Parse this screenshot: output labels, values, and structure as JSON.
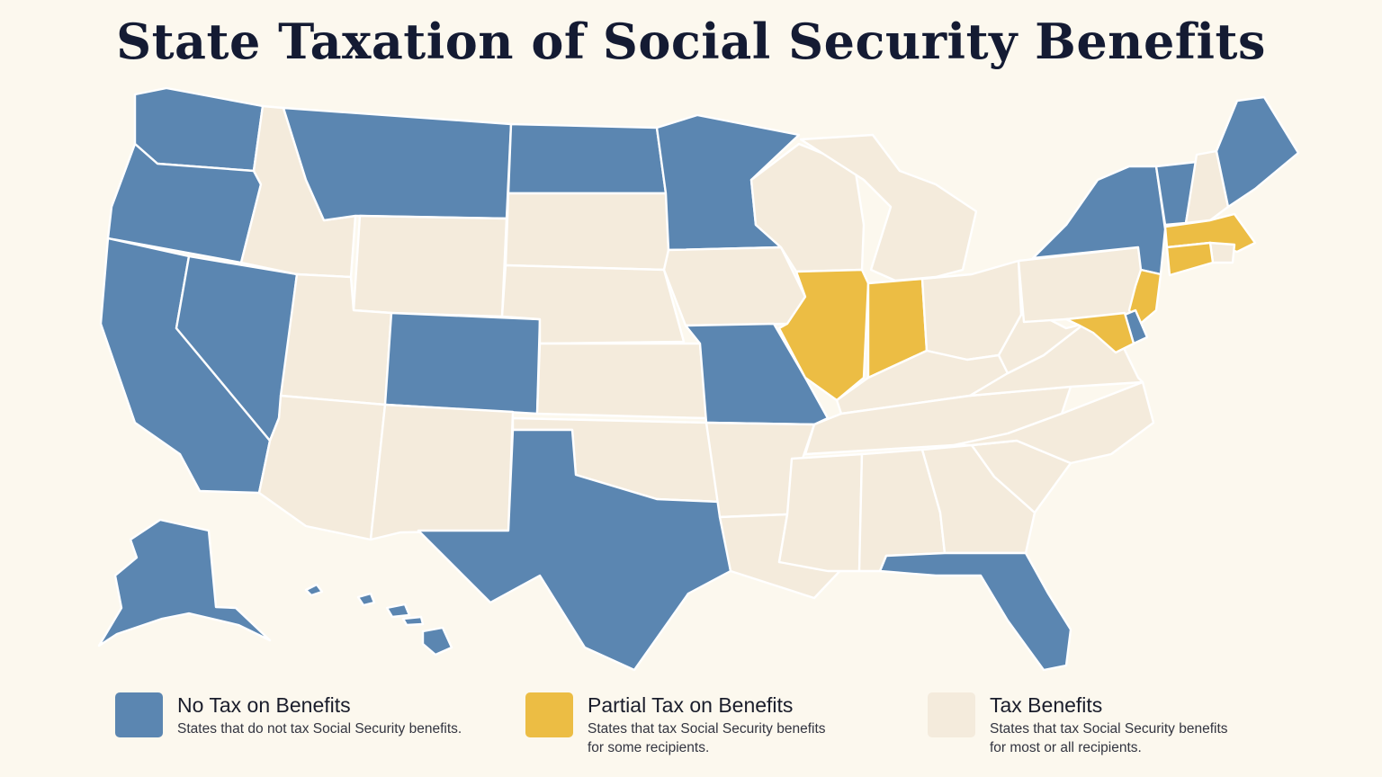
{
  "title": "State Taxation of Social Security Benefits",
  "colors": {
    "none": "#5b86b1",
    "partial": "#ecbd44",
    "full": "#f4ebdc",
    "background": "#fcf8ee",
    "border": "#ffffff"
  },
  "legend": [
    {
      "key": "none",
      "label": "No Tax on Benefits",
      "description": "States that do not tax Social Security benefits."
    },
    {
      "key": "partial",
      "label": "Partial Tax on Benefits",
      "description": "States that tax Social Security benefits for some recipients."
    },
    {
      "key": "full",
      "label": "Tax Benefits",
      "description": "States that tax Social Security benefits for most or all recipients."
    }
  ],
  "states": {
    "WA": "none",
    "OR": "none",
    "CA": "none",
    "NV": "none",
    "ID": "full",
    "MT": "none",
    "WY": "full",
    "UT": "full",
    "AZ": "full",
    "CO": "none",
    "NM": "full",
    "ND": "none",
    "SD": "full",
    "NE": "full",
    "KS": "full",
    "OK": "full",
    "TX": "none",
    "MN": "none",
    "IA": "full",
    "MO": "none",
    "AR": "full",
    "LA": "full",
    "WI": "full",
    "IL": "partial",
    "MI": "full",
    "IN": "partial",
    "OH": "full",
    "KY": "full",
    "TN": "full",
    "MS": "full",
    "AL": "full",
    "GA": "full",
    "FL": "none",
    "SC": "full",
    "NC": "full",
    "VA": "full",
    "WV": "full",
    "PA": "full",
    "NY": "none",
    "VT": "none",
    "NH": "full",
    "ME": "none",
    "MA": "partial",
    "RI": "full",
    "CT": "partial",
    "NJ": "partial",
    "DE": "none",
    "MD": "partial",
    "AK": "none",
    "HI": "none"
  }
}
